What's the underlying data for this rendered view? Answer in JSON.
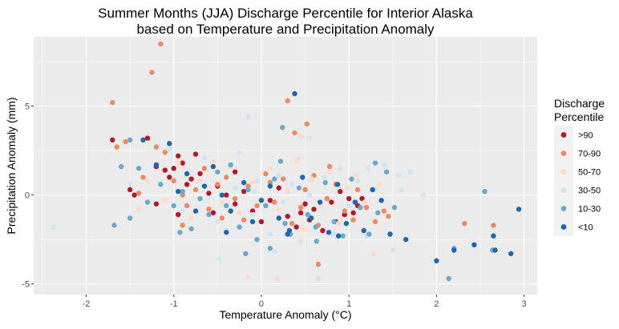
{
  "chart_data": {
    "type": "scatter",
    "title": "Summer Months (JJA) Discharge Percentile for Interior Alaska",
    "subtitle": "based on Temperature and Precipitation Anomaly",
    "xlabel": "Temperature Anomaly (°C)",
    "ylabel": "Precipitation Anomaly (mm)",
    "xlim": [
      -2.6,
      3.15
    ],
    "ylim": [
      -5.6,
      8.9
    ],
    "x_ticks": [
      -2,
      -1,
      0,
      1,
      2,
      3
    ],
    "y_ticks": [
      -5,
      0,
      5
    ],
    "grid": true,
    "legend_placement": "right",
    "legend_title": [
      "Discharge",
      "Percentile"
    ],
    "panel_color": "#ebebeb",
    "series": [
      {
        "name": ">90",
        "color": "#b2182b",
        "points": [
          [
            -1.7,
            3.1
          ],
          [
            -1.5,
            0.3
          ],
          [
            -1.45,
            0.0
          ],
          [
            -1.3,
            3.2
          ],
          [
            -1.2,
            1.6
          ],
          [
            -1.1,
            1.4
          ],
          [
            -1.05,
            1.0
          ],
          [
            -1.0,
            1.5
          ],
          [
            -0.95,
            2.2
          ],
          [
            -0.9,
            1.8
          ],
          [
            -0.85,
            0.6
          ],
          [
            -0.8,
            0.9
          ],
          [
            -0.75,
            2.3
          ],
          [
            -0.7,
            1.2
          ],
          [
            -0.6,
            0.1
          ],
          [
            -0.55,
            -1.0
          ],
          [
            -0.5,
            0.5
          ],
          [
            -0.4,
            0.0
          ],
          [
            -0.3,
            -0.5
          ],
          [
            -0.2,
            0.2
          ],
          [
            -0.1,
            -0.9
          ],
          [
            0.0,
            -1.5
          ],
          [
            0.1,
            -0.3
          ],
          [
            0.2,
            0.4
          ],
          [
            0.3,
            -1.2
          ],
          [
            0.4,
            -1.8
          ],
          [
            0.5,
            -0.5
          ],
          [
            0.55,
            -1.4
          ],
          [
            0.6,
            -0.8
          ],
          [
            0.7,
            -2.0
          ],
          [
            0.8,
            -0.4
          ],
          [
            0.85,
            -1.5
          ],
          [
            0.9,
            0.2
          ],
          [
            0.95,
            -1.1
          ],
          [
            1.0,
            -0.2
          ],
          [
            1.05,
            -1.0
          ],
          [
            1.1,
            -0.6
          ],
          [
            1.15,
            -0.2
          ],
          [
            -1.2,
            -0.5
          ],
          [
            -0.95,
            -1.1
          ],
          [
            -0.3,
            1.3
          ],
          [
            0.45,
            -1.0
          ]
        ]
      },
      {
        "name": "70-90",
        "color": "#ef8a62",
        "points": [
          [
            -1.15,
            8.5
          ],
          [
            -1.25,
            6.9
          ],
          [
            -1.7,
            5.2
          ],
          [
            -1.65,
            2.7
          ],
          [
            -1.55,
            3.0
          ],
          [
            -1.4,
            0.1
          ],
          [
            -1.35,
            1.0
          ],
          [
            -1.2,
            2.7
          ],
          [
            -1.1,
            2.4
          ],
          [
            -1.0,
            0.8
          ],
          [
            -0.9,
            0.0
          ],
          [
            -0.85,
            -0.6
          ],
          [
            -0.75,
            0.3
          ],
          [
            -0.65,
            1.5
          ],
          [
            -0.6,
            -0.8
          ],
          [
            -0.5,
            0.6
          ],
          [
            -0.4,
            1.0
          ],
          [
            -0.3,
            -0.2
          ],
          [
            -0.2,
            -1.4
          ],
          [
            -0.15,
            0.5
          ],
          [
            -0.05,
            -0.6
          ],
          [
            0.05,
            1.2
          ],
          [
            0.15,
            -0.4
          ],
          [
            0.25,
            0.9
          ],
          [
            0.35,
            -1.6
          ],
          [
            0.45,
            -0.7
          ],
          [
            0.5,
            0.3
          ],
          [
            0.6,
            1.1
          ],
          [
            0.65,
            -1.7
          ],
          [
            0.75,
            -0.2
          ],
          [
            0.85,
            0.6
          ],
          [
            0.95,
            -0.9
          ],
          [
            1.05,
            -1.4
          ],
          [
            1.1,
            0.3
          ],
          [
            1.2,
            -0.7
          ],
          [
            1.3,
            -1.5
          ],
          [
            1.4,
            -0.9
          ],
          [
            1.45,
            -1.2
          ],
          [
            0.3,
            5.3
          ],
          [
            0.52,
            4.0
          ],
          [
            0.38,
            3.5
          ],
          [
            0.65,
            -3.9
          ],
          [
            2.32,
            -1.6
          ],
          [
            2.65,
            -1.7
          ],
          [
            -0.9,
            -1.7
          ],
          [
            -0.45,
            -1.3
          ],
          [
            0.1,
            0.7
          ],
          [
            0.78,
            1.6
          ]
        ]
      },
      {
        "name": "50-70",
        "color": "#fddbc7",
        "points": [
          [
            -1.4,
            -0.8
          ],
          [
            -1.3,
            0.8
          ],
          [
            -1.1,
            -0.3
          ],
          [
            -0.95,
            1.8
          ],
          [
            -0.8,
            -1.3
          ],
          [
            -0.7,
            0.8
          ],
          [
            -0.55,
            1.9
          ],
          [
            -0.45,
            -0.4
          ],
          [
            -0.35,
            1.6
          ],
          [
            -0.25,
            -1.0
          ],
          [
            -0.1,
            0.7
          ],
          [
            0.0,
            -0.2
          ],
          [
            0.1,
            1.5
          ],
          [
            0.2,
            -0.8
          ],
          [
            0.3,
            0.2
          ],
          [
            0.4,
            1.9
          ],
          [
            0.48,
            -1.9
          ],
          [
            0.58,
            0.9
          ],
          [
            0.68,
            -0.6
          ],
          [
            0.78,
            1.3
          ],
          [
            0.88,
            -1.6
          ],
          [
            0.98,
            0.4
          ],
          [
            1.08,
            1.1
          ],
          [
            1.18,
            -0.4
          ],
          [
            1.28,
            -3.3
          ],
          [
            1.35,
            0.6
          ],
          [
            0.25,
            3.8
          ],
          [
            0.45,
            3.3
          ],
          [
            0.18,
            -4.7
          ],
          [
            -0.15,
            -4.6
          ],
          [
            0.42,
            2.0
          ]
        ]
      },
      {
        "name": "30-50",
        "color": "#d1e5f0",
        "points": [
          [
            -2.37,
            -1.8
          ],
          [
            -1.5,
            0.6
          ],
          [
            -1.05,
            2.6
          ],
          [
            -0.9,
            -0.9
          ],
          [
            -0.65,
            2.1
          ],
          [
            -0.5,
            -1.5
          ],
          [
            -0.4,
            -2.0
          ],
          [
            -0.3,
            0.4
          ],
          [
            -0.25,
            2.4
          ],
          [
            -0.1,
            -1.1
          ],
          [
            -0.05,
            0.8
          ],
          [
            0.1,
            -2.2
          ],
          [
            0.2,
            1.1
          ],
          [
            0.25,
            -0.4
          ],
          [
            0.35,
            0.6
          ],
          [
            0.45,
            -2.6
          ],
          [
            0.55,
            0.0
          ],
          [
            0.65,
            -4.7
          ],
          [
            0.72,
            1.0
          ],
          [
            0.82,
            -2.2
          ],
          [
            0.9,
            1.5
          ],
          [
            1.0,
            -0.6
          ],
          [
            1.1,
            0.8
          ],
          [
            1.2,
            -2.3
          ],
          [
            1.3,
            0.3
          ],
          [
            1.4,
            1.7
          ],
          [
            1.5,
            -3.1
          ],
          [
            1.57,
            1.1
          ],
          [
            1.7,
            1.3
          ],
          [
            1.85,
            0.0
          ],
          [
            -0.15,
            4.4
          ],
          [
            -0.48,
            -3.6
          ],
          [
            0.55,
            3.2
          ],
          [
            1.22,
            1.5
          ],
          [
            -0.08,
            0.2
          ],
          [
            0.15,
            -3.2
          ],
          [
            1.6,
            0.3
          ]
        ]
      },
      {
        "name": "10-30",
        "color": "#67a9cf",
        "points": [
          [
            -1.68,
            -1.7
          ],
          [
            -1.5,
            3.1
          ],
          [
            -1.6,
            1.6
          ],
          [
            -1.5,
            -1.3
          ],
          [
            -1.4,
            1.5
          ],
          [
            -1.3,
            -0.4
          ],
          [
            -1.15,
            0.6
          ],
          [
            -1.0,
            -0.6
          ],
          [
            -0.9,
            0.2
          ],
          [
            -0.8,
            -1.9
          ],
          [
            -0.7,
            -0.2
          ],
          [
            -0.6,
            -1.1
          ],
          [
            -0.5,
            1.3
          ],
          [
            -0.4,
            -0.6
          ],
          [
            -0.35,
            1.7
          ],
          [
            -0.25,
            -1.8
          ],
          [
            -0.15,
            0.3
          ],
          [
            -0.05,
            -2.5
          ],
          [
            0.05,
            -0.6
          ],
          [
            0.15,
            0.9
          ],
          [
            0.22,
            1.9
          ],
          [
            0.27,
            -1.6
          ],
          [
            0.33,
            -2.2
          ],
          [
            0.43,
            0.4
          ],
          [
            0.53,
            -1.1
          ],
          [
            0.63,
            -2.6
          ],
          [
            0.73,
            0.7
          ],
          [
            0.83,
            -1.5
          ],
          [
            0.93,
            -2.3
          ],
          [
            1.03,
            0.9
          ],
          [
            1.13,
            -0.7
          ],
          [
            1.23,
            -2.2
          ],
          [
            1.33,
            -1.0
          ],
          [
            1.43,
            1.3
          ],
          [
            1.52,
            -0.7
          ],
          [
            2.55,
            0.2
          ],
          [
            2.64,
            -3.1
          ],
          [
            2.2,
            -3.0
          ],
          [
            0.24,
            3.8
          ],
          [
            1.3,
            1.8
          ],
          [
            0.1,
            -3.0
          ],
          [
            0.62,
            -1.8
          ],
          [
            2.14,
            -4.7
          ],
          [
            -0.93,
            -2.1
          ],
          [
            -0.18,
            -3.3
          ]
        ]
      },
      {
        "name": "<10",
        "color": "#2166ac",
        "points": [
          [
            -1.35,
            3.1
          ],
          [
            -1.2,
            1.7
          ],
          [
            -1.05,
            2.9
          ],
          [
            -0.95,
            0.2
          ],
          [
            -0.85,
            1.2
          ],
          [
            -0.75,
            -0.9
          ],
          [
            -0.65,
            0.5
          ],
          [
            -0.55,
            1.6
          ],
          [
            -0.45,
            0.0
          ],
          [
            -0.35,
            -0.9
          ],
          [
            -0.2,
            0.7
          ],
          [
            -0.1,
            -1.5
          ],
          [
            0.0,
            -0.3
          ],
          [
            0.1,
            0.5
          ],
          [
            0.2,
            -1.3
          ],
          [
            0.3,
            -2.2
          ],
          [
            0.38,
            5.7
          ],
          [
            0.47,
            1.0
          ],
          [
            0.57,
            -1.3
          ],
          [
            0.67,
            -0.4
          ],
          [
            0.77,
            -2.1
          ],
          [
            0.87,
            0.6
          ],
          [
            0.97,
            -1.6
          ],
          [
            1.07,
            -0.4
          ],
          [
            1.17,
            -2.0
          ],
          [
            1.27,
            0.3
          ],
          [
            1.37,
            -0.3
          ],
          [
            1.47,
            -2.2
          ],
          [
            1.65,
            -2.5
          ],
          [
            2.0,
            -3.7
          ],
          [
            2.2,
            -3.1
          ],
          [
            2.43,
            -2.8
          ],
          [
            2.65,
            -2.3
          ],
          [
            2.85,
            -3.3
          ],
          [
            2.94,
            -0.8
          ],
          [
            2.67,
            -3.1
          ],
          [
            -0.4,
            -2.1
          ],
          [
            0.32,
            -2.0
          ],
          [
            0.88,
            -2.3
          ]
        ]
      }
    ]
  }
}
